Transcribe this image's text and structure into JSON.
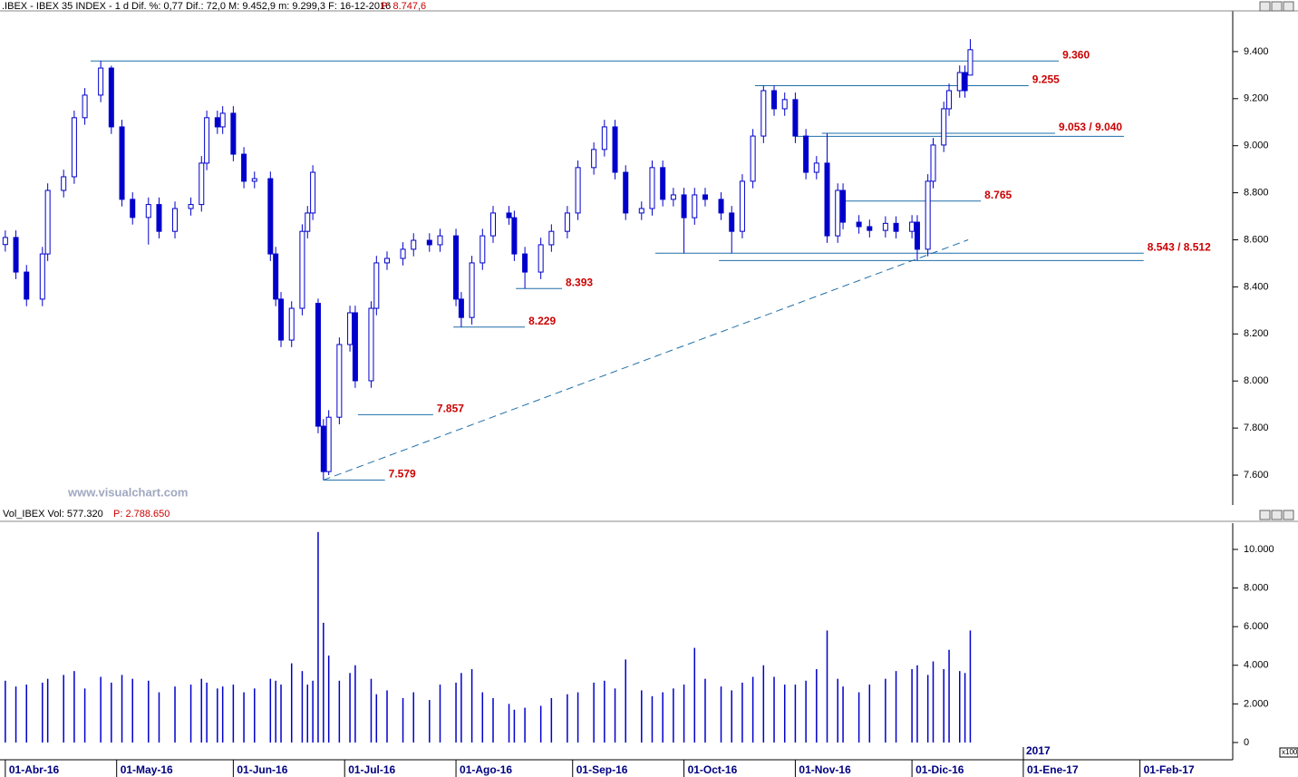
{
  "chart_data": [
    {
      "type": "candlestick",
      "title": ".IBEX - IBEX 35 INDEX - 1 d  Dif. %: 0,77  Dif.: 72,0  M: 9.452,9  m: 9.299,3  F: 16-12-2016",
      "last_price": "P: 8.747,6",
      "watermark": "www.visualchart.com",
      "color": "#0000cc",
      "x": [
        0,
        2,
        4,
        7,
        8,
        11,
        13,
        15,
        18,
        20,
        22,
        24,
        27,
        29,
        32,
        35,
        37,
        38,
        40,
        41,
        43,
        45,
        47,
        50,
        51,
        52,
        54,
        56,
        57,
        58,
        59,
        60,
        61,
        63,
        65,
        66,
        69,
        70,
        72,
        75,
        77,
        80,
        82,
        85,
        86,
        88,
        90,
        92,
        95,
        96,
        98,
        101,
        103,
        106,
        108,
        111,
        113,
        115,
        117,
        120,
        122,
        124,
        126,
        128,
        130,
        132,
        135,
        137,
        139,
        141,
        143,
        145,
        147,
        149,
        151,
        153,
        155,
        157,
        158,
        161,
        163,
        166,
        168,
        171,
        172,
        174,
        175,
        177,
        178,
        180,
        181,
        182
      ],
      "open": [
        8580,
        8610,
        8463,
        8348,
        8540,
        8810,
        8868,
        9119,
        9215,
        9330,
        9080,
        8772,
        8695,
        8750,
        8636,
        8733,
        8750,
        8926,
        9119,
        9080,
        9138,
        8964,
        8849,
        8860,
        8540,
        8348,
        8174,
        8309,
        8636,
        8714,
        8330,
        7808,
        7615,
        7846,
        8155,
        8290,
        8001,
        8309,
        8502,
        8521,
        8560,
        8598,
        8579,
        8617,
        8348,
        8270,
        8502,
        8617,
        8714,
        8694,
        8540,
        8463,
        8579,
        8636,
        8714,
        8907,
        8984,
        9080,
        8887,
        8714,
        8733,
        8907,
        8772,
        8791,
        8694,
        8791,
        8772,
        8714,
        8636,
        8849,
        9041,
        9234,
        9157,
        9196,
        9041,
        8887,
        8926,
        8617,
        8810,
        8675,
        8656,
        8640,
        8670,
        8636,
        8675,
        8560,
        8849,
        9003,
        9157,
        9234,
        9311,
        9300
      ],
      "high": [
        8640,
        8640,
        8493,
        8570,
        8840,
        8898,
        9149,
        9245,
        9360,
        9340,
        9110,
        8802,
        8780,
        8780,
        8763,
        8780,
        8956,
        9149,
        9149,
        9168,
        9168,
        8994,
        8890,
        8890,
        8570,
        8378,
        8339,
        8666,
        8744,
        8917,
        8350,
        7838,
        7876,
        8185,
        8320,
        8320,
        8339,
        8532,
        8551,
        8590,
        8628,
        8628,
        8647,
        8647,
        8378,
        8532,
        8647,
        8744,
        8744,
        8724,
        8570,
        8609,
        8666,
        8744,
        8937,
        9014,
        9110,
        9110,
        8917,
        8763,
        8937,
        8937,
        8821,
        8821,
        8821,
        8821,
        8802,
        8744,
        8879,
        9071,
        9255,
        9255,
        9226,
        9226,
        9071,
        8956,
        9053,
        8840,
        8840,
        8705,
        8686,
        8700,
        8700,
        8705,
        8705,
        8879,
        9033,
        9187,
        9264,
        9341,
        9341,
        9452.9
      ],
      "low": [
        8550,
        8433,
        8318,
        8318,
        8510,
        8780,
        8838,
        9089,
        9185,
        9050,
        8742,
        8665,
        8580,
        8606,
        8606,
        8703,
        8720,
        8896,
        9050,
        9050,
        8934,
        8819,
        8819,
        8510,
        8318,
        8144,
        8144,
        8279,
        8606,
        8684,
        7778,
        7579,
        7600,
        7816,
        8125,
        7971,
        7971,
        8279,
        8472,
        8491,
        8530,
        8549,
        8549,
        8318,
        8229,
        8240,
        8472,
        8587,
        8664,
        8510,
        8393,
        8433,
        8549,
        8606,
        8684,
        8877,
        8954,
        8857,
        8684,
        8684,
        8703,
        8742,
        8742,
        8543,
        8664,
        8742,
        8684,
        8543,
        8606,
        8819,
        9011,
        9127,
        9127,
        9011,
        8857,
        8857,
        8587,
        8587,
        8645,
        8626,
        8610,
        8610,
        8606,
        8606,
        8512,
        8530,
        8819,
        8973,
        9127,
        9204,
        9204,
        9299.3
      ],
      "close": [
        8610,
        8463,
        8348,
        8540,
        8810,
        8868,
        9119,
        9215,
        9330,
        9080,
        8772,
        8695,
        8750,
        8636,
        8733,
        8750,
        8926,
        9119,
        9080,
        9138,
        8964,
        8849,
        8860,
        8540,
        8348,
        8174,
        8309,
        8636,
        8714,
        8887,
        7808,
        7615,
        7846,
        8155,
        8290,
        8001,
        8309,
        8502,
        8521,
        8560,
        8598,
        8579,
        8617,
        8348,
        8270,
        8502,
        8617,
        8714,
        8694,
        8540,
        8463,
        8579,
        8636,
        8714,
        8907,
        8984,
        9080,
        8887,
        8714,
        8733,
        8907,
        8772,
        8791,
        8694,
        8791,
        8772,
        8714,
        8636,
        8849,
        9041,
        9234,
        9157,
        9196,
        9041,
        8887,
        8926,
        8617,
        8810,
        8675,
        8656,
        8640,
        8670,
        8636,
        8675,
        8560,
        8849,
        9003,
        9157,
        9234,
        9311,
        9234,
        9408
      ],
      "xlim": [
        -1,
        231.5
      ],
      "ylim": [
        7473,
        9573
      ],
      "yticks": [
        {
          "value": 7600,
          "label": "7.600"
        },
        {
          "value": 7800,
          "label": "7.800"
        },
        {
          "value": 8000,
          "label": "8.000"
        },
        {
          "value": 8200,
          "label": "8.200"
        },
        {
          "value": 8400,
          "label": "8.400"
        },
        {
          "value": 8600,
          "label": "8.600"
        },
        {
          "value": 8800,
          "label": "8.800"
        },
        {
          "value": 9000,
          "label": "9.000"
        },
        {
          "value": 9200,
          "label": "9.200"
        },
        {
          "value": 9400,
          "label": "9.400"
        }
      ],
      "levels": [
        {
          "label": "9.360",
          "lines": [
            {
              "value": 9360,
              "x": [
                16.1,
                198.7
              ]
            }
          ]
        },
        {
          "label": "9.255",
          "lines": [
            {
              "value": 9255,
              "x": [
                141.4,
                193
              ]
            }
          ]
        },
        {
          "label": "9.053 / 9.040",
          "lines": [
            {
              "value": 9053,
              "x": [
                154,
                198
              ]
            },
            {
              "value": 9040,
              "x": [
                149,
                211
              ]
            }
          ]
        },
        {
          "label": "8.765",
          "lines": [
            {
              "value": 8765,
              "x": [
                158,
                184
              ]
            }
          ]
        },
        {
          "label": "8.543 / 8.512",
          "lines": [
            {
              "value": 8543,
              "x": [
                122.6,
                214.7
              ]
            },
            {
              "value": 8512,
              "x": [
                134.6,
                214.7
              ]
            }
          ]
        },
        {
          "label": "8.393",
          "lines": [
            {
              "value": 8393,
              "x": [
                96.3,
                105
              ]
            }
          ]
        },
        {
          "label": "8.229",
          "lines": [
            {
              "value": 8229,
              "x": [
                84.5,
                98
              ]
            }
          ]
        },
        {
          "label": "7.857",
          "lines": [
            {
              "value": 7857,
              "x": [
                66.5,
                80.7
              ]
            }
          ]
        },
        {
          "label": "7.579",
          "lines": [
            {
              "value": 7579,
              "x": [
                60,
                71.6
              ]
            }
          ]
        }
      ],
      "trendline": {
        "x": [
          60,
          181.6
        ],
        "y": [
          7579,
          8600
        ]
      }
    },
    {
      "type": "bar",
      "title": "Vol_IBEX Vol: 577.320",
      "last_value": "P: 2.788.650",
      "color": "#0000cc",
      "values": [
        3200,
        2900,
        3000,
        3100,
        3300,
        3500,
        3700,
        2800,
        3400,
        3100,
        3500,
        3300,
        3200,
        2600,
        2900,
        3000,
        3300,
        3100,
        2800,
        2900,
        3000,
        2600,
        2800,
        3300,
        3200,
        3000,
        4100,
        3700,
        3000,
        3200,
        10900,
        6200,
        4500,
        3200,
        3600,
        4000,
        3300,
        2500,
        2700,
        2300,
        2600,
        2200,
        3000,
        3100,
        3600,
        3800,
        2600,
        2300,
        2000,
        1700,
        1800,
        1900,
        2300,
        2500,
        2600,
        3100,
        3200,
        2800,
        4300,
        2700,
        2400,
        2600,
        2800,
        3000,
        4900,
        3300,
        2900,
        2700,
        3100,
        3400,
        4000,
        3400,
        3000,
        3000,
        3200,
        3800,
        5800,
        3300,
        2900,
        2600,
        3000,
        3300,
        3700,
        3800,
        4000,
        3500,
        4200,
        3800,
        4800,
        3700,
        3600,
        5800
      ],
      "ylim": [
        -800,
        11360
      ],
      "yticks": [
        0,
        {
          "value": 2000,
          "label": "2.000"
        },
        {
          "value": 4000,
          "label": "4.000"
        },
        {
          "value": 6000,
          "label": "6.000"
        },
        {
          "value": 8000,
          "label": "8.000"
        },
        {
          "value": 10000,
          "label": "10.000"
        }
      ],
      "xticks": [
        {
          "value": 0,
          "label": "01-Abr-16"
        },
        {
          "value": 21,
          "label": "01-May-16"
        },
        {
          "value": 43,
          "label": "01-Jun-16"
        },
        {
          "value": 64,
          "label": "01-Jul-16"
        },
        {
          "value": 85,
          "label": "01-Ago-16"
        },
        {
          "value": 107,
          "label": "01-Sep-16"
        },
        {
          "value": 128,
          "label": "01-Oct-16"
        },
        {
          "value": 149,
          "label": "01-Nov-16"
        },
        {
          "value": 171,
          "label": "01-Dic-16"
        },
        {
          "value": 192,
          "label": "01-Ene-17"
        },
        {
          "value": 214,
          "label": "01-Feb-17"
        }
      ],
      "year_label": "2017",
      "unit_label": "x100"
    }
  ]
}
